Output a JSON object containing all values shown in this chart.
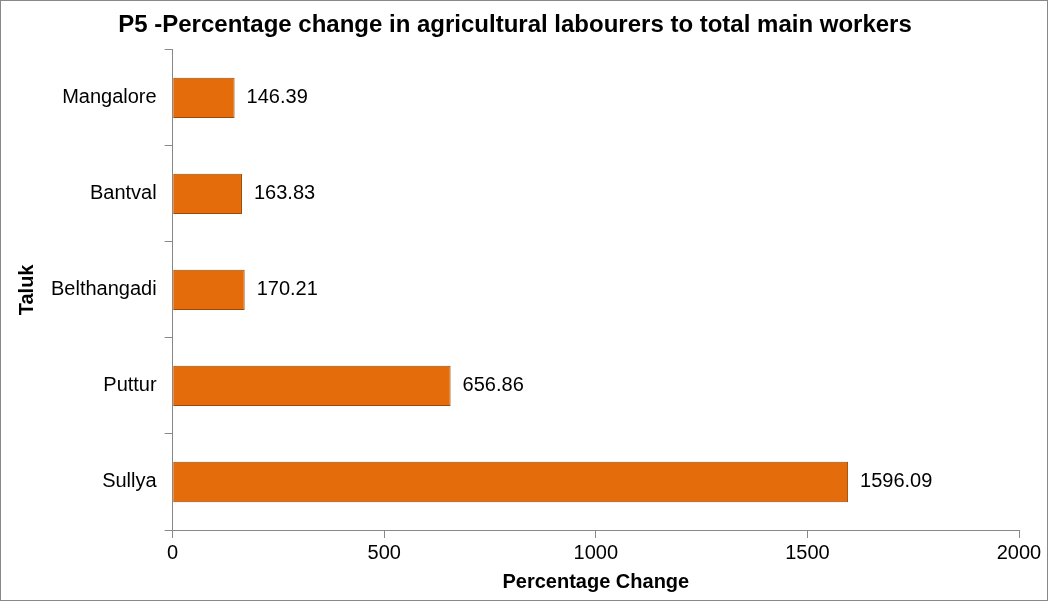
{
  "chart_data": {
    "type": "bar",
    "orientation": "horizontal",
    "title": "P5 -Percentage change in agricultural labourers to total main workers",
    "xlabel": "Percentage Change",
    "ylabel": "Taluk",
    "categories": [
      "Mangalore",
      "Bantval",
      "Belthangadi",
      "Puttur",
      "Sullya"
    ],
    "values": [
      146.39,
      163.83,
      170.21,
      656.86,
      1596.09
    ],
    "color": "#e46c0a",
    "xlim": [
      0,
      2000
    ],
    "xticks": [
      0,
      500,
      1000,
      1500,
      2000
    ],
    "data_labels": true,
    "grid": false,
    "legend": false
  }
}
